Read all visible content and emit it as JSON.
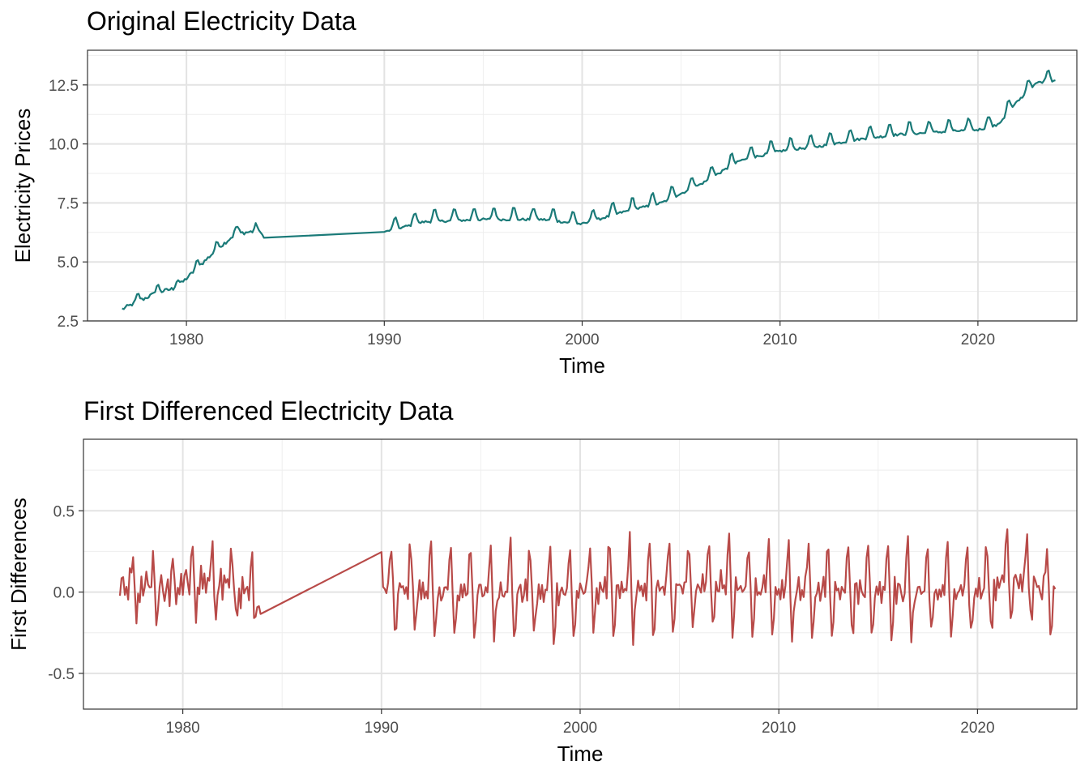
{
  "chart_data": [
    {
      "type": "line",
      "title": "Original Electricity Data",
      "xlabel": "Time",
      "ylabel": "Electricity Prices",
      "xlim": [
        1975.0,
        2025.0
      ],
      "ylim": [
        2.5,
        13.97
      ],
      "x_ticks": [
        1980,
        1990,
        2000,
        2010,
        2020
      ],
      "y_ticks": [
        2.5,
        5.0,
        7.5,
        10.0,
        12.5
      ],
      "x_tick_labels": [
        "1980",
        "1990",
        "2000",
        "2010",
        "2020"
      ],
      "y_tick_labels": [
        "2.5",
        "5.0",
        "7.5",
        "10.0",
        "12.5"
      ],
      "grid": true,
      "color": "#1a7a78",
      "segments": [
        {
          "from": 1976.75,
          "to": 1983.92,
          "knots": [
            [
              1976.75,
              3.0
            ],
            [
              1977.5,
              3.3
            ],
            [
              1978.5,
              3.7
            ],
            [
              1979.5,
              3.9
            ],
            [
              1980.5,
              4.7
            ],
            [
              1981.5,
              5.5
            ],
            [
              1982.5,
              6.2
            ],
            [
              1983.5,
              6.3
            ],
            [
              1983.92,
              6.1
            ]
          ],
          "seasonal": 0.3,
          "noise": 0.08,
          "phase": 0.5
        },
        {
          "from": 1983.92,
          "to": 1990.0,
          "knots": [
            [
              1983.92,
              6.1
            ],
            [
              1990.0,
              6.27
            ]
          ],
          "seasonal": 0,
          "noise": 0
        },
        {
          "from": 1990.0,
          "to": 2023.92,
          "knots": [
            [
              1990.0,
              6.27
            ],
            [
              1992,
              6.7
            ],
            [
              1995,
              6.8
            ],
            [
              1998,
              6.8
            ],
            [
              2000,
              6.6
            ],
            [
              2002,
              7.1
            ],
            [
              2004,
              7.5
            ],
            [
              2006,
              8.3
            ],
            [
              2008,
              9.3
            ],
            [
              2010,
              9.7
            ],
            [
              2012,
              9.9
            ],
            [
              2014,
              10.2
            ],
            [
              2016,
              10.4
            ],
            [
              2018,
              10.5
            ],
            [
              2020,
              10.6
            ],
            [
              2021,
              10.8
            ],
            [
              2022,
              11.8
            ],
            [
              2023,
              12.6
            ],
            [
              2023.92,
              12.7
            ]
          ],
          "seasonal": 0.5,
          "noise": 0.05,
          "phase": 0.5
        }
      ]
    },
    {
      "type": "line",
      "title": "First Differenced Electricity Data",
      "xlabel": "Time",
      "ylabel": "First Differences",
      "xlim": [
        1975.0,
        2025.0
      ],
      "ylim": [
        -0.72,
        0.94
      ],
      "x_ticks": [
        1980,
        1990,
        2000,
        2010,
        2020
      ],
      "y_ticks": [
        -0.5,
        0.0,
        0.5
      ],
      "x_tick_labels": [
        "1980",
        "1990",
        "2000",
        "2010",
        "2020"
      ],
      "y_tick_labels": [
        "-0.5",
        "0.0",
        "0.5"
      ],
      "grid": true,
      "color": "#b84a48",
      "derived_from": 0
    }
  ]
}
